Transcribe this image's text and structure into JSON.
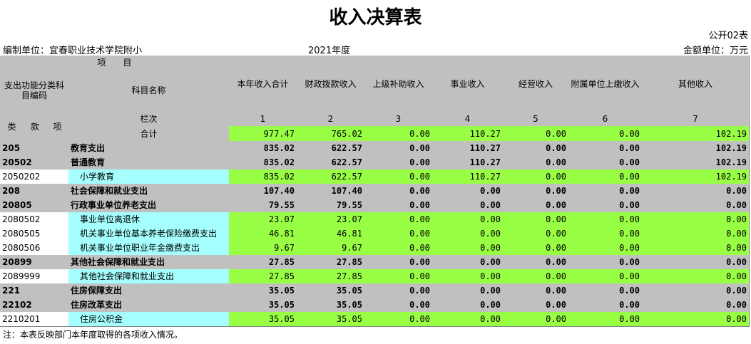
{
  "header": {
    "title": "收入决算表",
    "form_no": "公开02表",
    "unit": "编制单位：宜春职业技术学院附小",
    "year": "2021年度",
    "currency": "金额单位：万元"
  },
  "table": {
    "columns": {
      "item": "项　　目",
      "code": "支出功能分类科目编码",
      "name": "科目名称",
      "lei": "类",
      "kuan": "款",
      "xiang": "项",
      "col_index": "栏次",
      "data": [
        "本年收入合计",
        "财政拨款收入",
        "上级补助收入",
        "事业收入",
        "经营收入",
        "附属单位上缴收入",
        "其他收入"
      ],
      "col_numbers": [
        "1",
        "2",
        "3",
        "4",
        "5",
        "6",
        "7"
      ]
    },
    "total": {
      "label": "合计",
      "values": [
        "977.47",
        "765.02",
        "0.00",
        "110.27",
        "0.00",
        "0.00",
        "102.19"
      ]
    },
    "rows": [
      {
        "code": "205",
        "name": "教育支出",
        "values": [
          "835.02",
          "622.57",
          "0.00",
          "110.27",
          "0.00",
          "0.00",
          "102.19"
        ]
      },
      {
        "code": "20502",
        "name": "普通教育",
        "values": [
          "835.02",
          "622.57",
          "0.00",
          "110.27",
          "0.00",
          "0.00",
          "102.19"
        ]
      },
      {
        "code": "2050202",
        "name": "小学教育",
        "values": [
          "835.02",
          "622.57",
          "0.00",
          "110.27",
          "0.00",
          "0.00",
          "102.19"
        ]
      },
      {
        "code": "208",
        "name": "社会保障和就业支出",
        "values": [
          "107.40",
          "107.40",
          "0.00",
          "0.00",
          "0.00",
          "0.00",
          "0.00"
        ]
      },
      {
        "code": "20805",
        "name": "行政事业单位养老支出",
        "values": [
          "79.55",
          "79.55",
          "0.00",
          "0.00",
          "0.00",
          "0.00",
          "0.00"
        ]
      },
      {
        "code": "2080502",
        "name": "事业单位离退休",
        "values": [
          "23.07",
          "23.07",
          "0.00",
          "0.00",
          "0.00",
          "0.00",
          "0.00"
        ]
      },
      {
        "code": "2080505",
        "name": "机关事业单位基本养老保险缴费支出",
        "values": [
          "46.81",
          "46.81",
          "0.00",
          "0.00",
          "0.00",
          "0.00",
          "0.00"
        ]
      },
      {
        "code": "2080506",
        "name": "机关事业单位职业年金缴费支出",
        "values": [
          "9.67",
          "9.67",
          "0.00",
          "0.00",
          "0.00",
          "0.00",
          "0.00"
        ]
      },
      {
        "code": "20899",
        "name": "其他社会保障和就业支出",
        "values": [
          "27.85",
          "27.85",
          "0.00",
          "0.00",
          "0.00",
          "0.00",
          "0.00"
        ]
      },
      {
        "code": "2089999",
        "name": "其他社会保障和就业支出",
        "values": [
          "27.85",
          "27.85",
          "0.00",
          "0.00",
          "0.00",
          "0.00",
          "0.00"
        ]
      },
      {
        "code": "221",
        "name": "住房保障支出",
        "values": [
          "35.05",
          "35.05",
          "0.00",
          "0.00",
          "0.00",
          "0.00",
          "0.00"
        ]
      },
      {
        "code": "22102",
        "name": "住房改革支出",
        "values": [
          "35.05",
          "35.05",
          "0.00",
          "0.00",
          "0.00",
          "0.00",
          "0.00"
        ]
      },
      {
        "code": "2210201",
        "name": "住房公积金",
        "values": [
          "35.05",
          "35.05",
          "0.00",
          "0.00",
          "0.00",
          "0.00",
          "0.00"
        ]
      }
    ]
  },
  "note": "注：本表反映部门本年度取得的各项收入情况。"
}
